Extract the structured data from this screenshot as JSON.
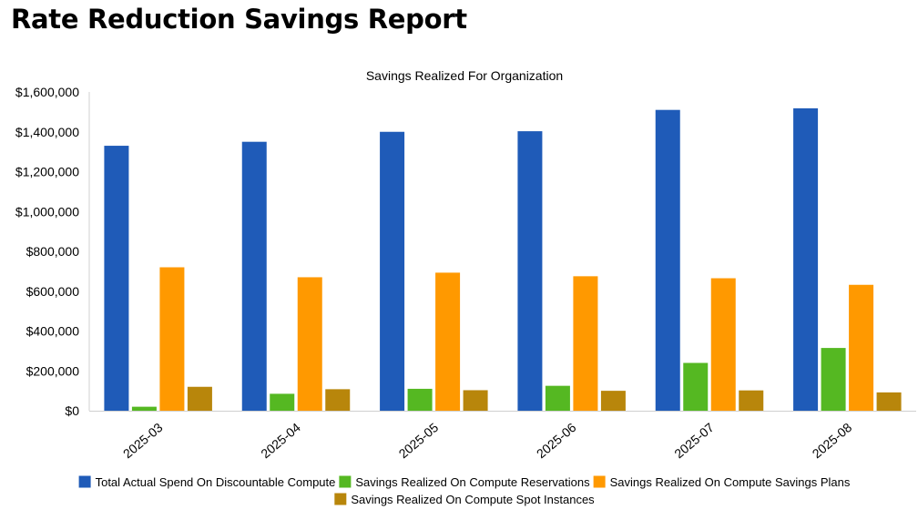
{
  "report": {
    "title": "Rate Reduction Savings Report"
  },
  "chart_data": {
    "type": "bar",
    "title": "Savings Realized For Organization",
    "xlabel": "",
    "ylabel": "",
    "categories": [
      "2025-03",
      "2025-04",
      "2025-05",
      "2025-06",
      "2025-07",
      "2025-08"
    ],
    "ylim": [
      0,
      1600000
    ],
    "yticks": [
      0,
      200000,
      400000,
      600000,
      800000,
      1000000,
      1200000,
      1400000,
      1600000
    ],
    "ytick_labels": [
      "$0",
      "$200,000",
      "$400,000",
      "$600,000",
      "$800,000",
      "$1,000,000",
      "$1,200,000",
      "$1,400,000",
      "$1,600,000"
    ],
    "grid": false,
    "legend_position": "bottom",
    "series": [
      {
        "name": "Total Actual Spend On Discountable Compute",
        "color": "#1f5bb8",
        "values": [
          1330000,
          1350000,
          1400000,
          1403000,
          1510000,
          1518000
        ]
      },
      {
        "name": "Savings Realized On Compute Reservations",
        "color": "#55b822",
        "values": [
          20000,
          85000,
          110000,
          125000,
          240000,
          315000
        ]
      },
      {
        "name": "Savings Realized On Compute Savings Plans",
        "color": "#ff9900",
        "values": [
          720000,
          670000,
          693000,
          675000,
          665000,
          632000
        ]
      },
      {
        "name": "Savings Realized On Compute Spot Instances",
        "color": "#b8860b",
        "values": [
          120000,
          108000,
          103000,
          100000,
          102000,
          92000
        ]
      }
    ]
  }
}
